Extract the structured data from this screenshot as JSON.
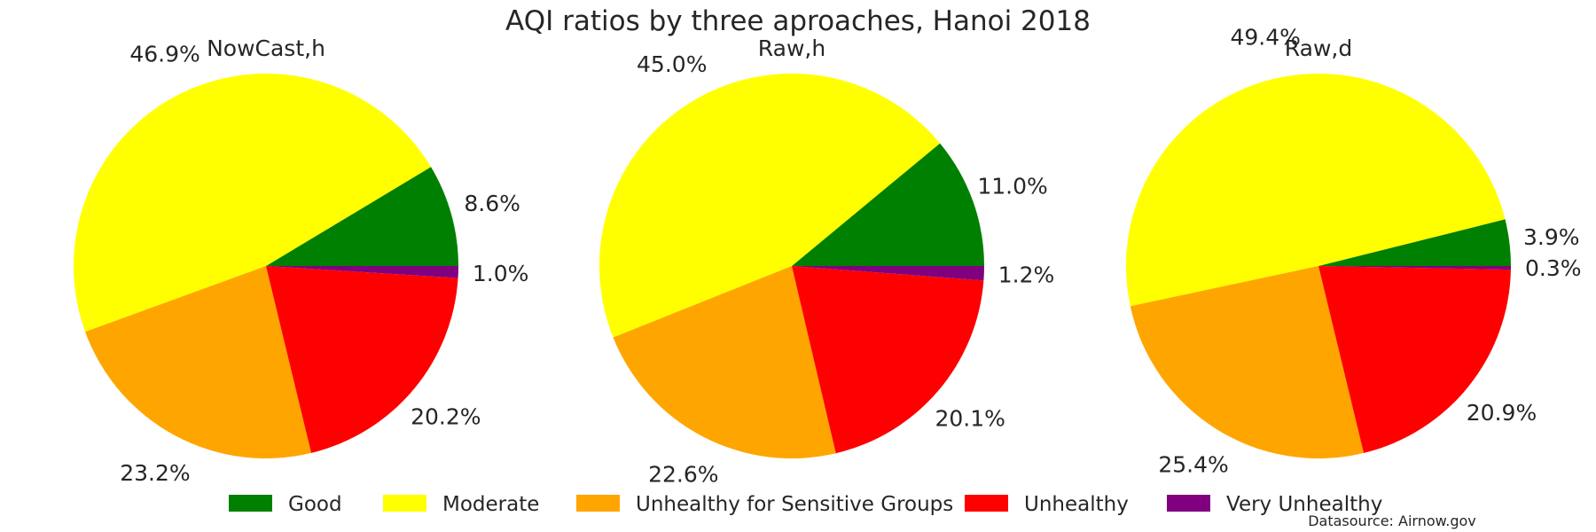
{
  "chart_data": {
    "type": "pie",
    "title": "AQI ratios by three aproaches, Hanoi 2018",
    "categories": [
      "Good",
      "Moderate",
      "Unhealthy for Sensitive Groups",
      "Unhealthy",
      "Very Unhealthy"
    ],
    "colors": [
      "#008000",
      "#ffff00",
      "#ffa500",
      "#ff0000",
      "#800080"
    ],
    "start_angle_deg": 0,
    "direction": "counterclockwise",
    "legend_position": "bottom",
    "source_note": "Datasource: Airnow.gov",
    "pies": [
      {
        "name": "NowCast,h",
        "values": [
          8.6,
          46.9,
          23.2,
          20.2,
          1.0
        ],
        "labels": [
          "8.6%",
          "46.9%",
          "23.2%",
          "20.2%",
          "1.0%"
        ]
      },
      {
        "name": "Raw,h",
        "values": [
          11.0,
          45.0,
          22.6,
          20.1,
          1.2
        ],
        "labels": [
          "11.0%",
          "45.0%",
          "22.6%",
          "20.1%",
          "1.2%"
        ]
      },
      {
        "name": "Raw,d",
        "values": [
          3.9,
          49.4,
          25.4,
          20.9,
          0.3
        ],
        "labels": [
          "3.9%",
          "49.4%",
          "25.4%",
          "20.9%",
          "0.3%"
        ]
      }
    ]
  }
}
